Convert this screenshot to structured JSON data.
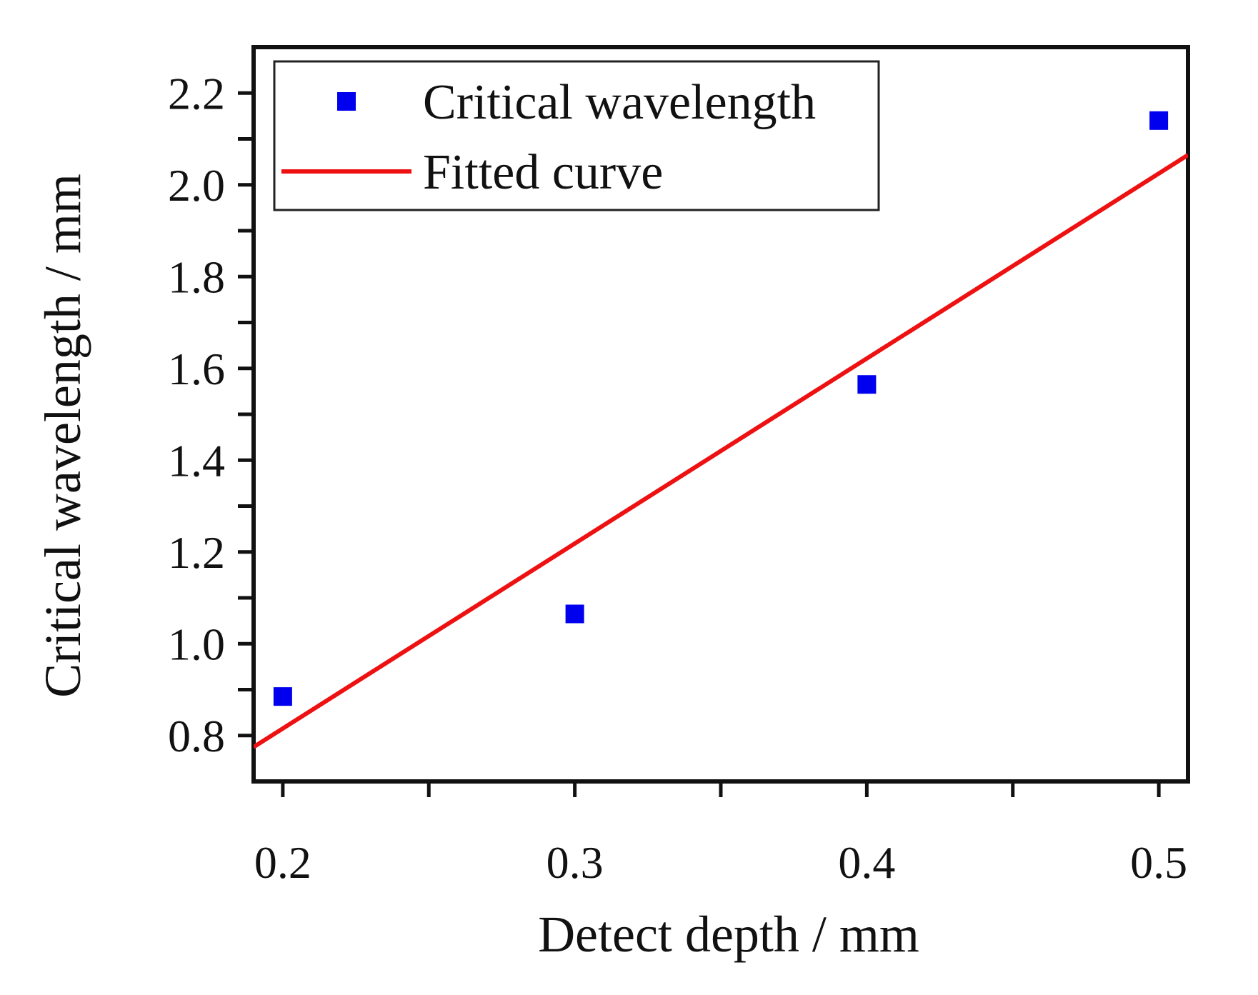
{
  "chart_data": {
    "type": "scatter",
    "title": "",
    "xlabel": "Detect depth / mm",
    "ylabel": "Critical wavelength / mm",
    "xlim": [
      0.19,
      0.51
    ],
    "ylim": [
      0.7,
      2.3
    ],
    "xticks": [
      {
        "value": 0.2,
        "label": "0.2"
      },
      {
        "value": 0.3,
        "label": "0.3"
      },
      {
        "value": 0.4,
        "label": "0.4"
      },
      {
        "value": 0.5,
        "label": "0.5"
      }
    ],
    "xminor": [
      0.25,
      0.35,
      0.45
    ],
    "yticks": [
      {
        "value": 0.8,
        "label": "0.8"
      },
      {
        "value": 1.0,
        "label": "1.0"
      },
      {
        "value": 1.2,
        "label": "1.2"
      },
      {
        "value": 1.4,
        "label": "1.4"
      },
      {
        "value": 1.6,
        "label": "1.6"
      },
      {
        "value": 1.8,
        "label": "1.8"
      },
      {
        "value": 2.0,
        "label": "2.0"
      },
      {
        "value": 2.2,
        "label": "2.2"
      }
    ],
    "yminor": [
      0.9,
      1.1,
      1.3,
      1.5,
      1.7,
      1.9,
      2.1
    ],
    "series": [
      {
        "name": "Critical wavelength",
        "kind": "scatter",
        "marker": "square",
        "color": "#0000ee",
        "x": [
          0.2,
          0.3,
          0.4,
          0.5
        ],
        "y": [
          0.885,
          1.065,
          1.565,
          2.14
        ]
      },
      {
        "name": "Fitted curve",
        "kind": "line",
        "color": "#ee1111",
        "x": [
          0.19,
          0.51
        ],
        "y": [
          0.775,
          2.065
        ]
      }
    ],
    "legend": {
      "position": "top-left",
      "entries": [
        "Critical wavelength",
        "Fitted curve"
      ]
    },
    "grid": false
  }
}
